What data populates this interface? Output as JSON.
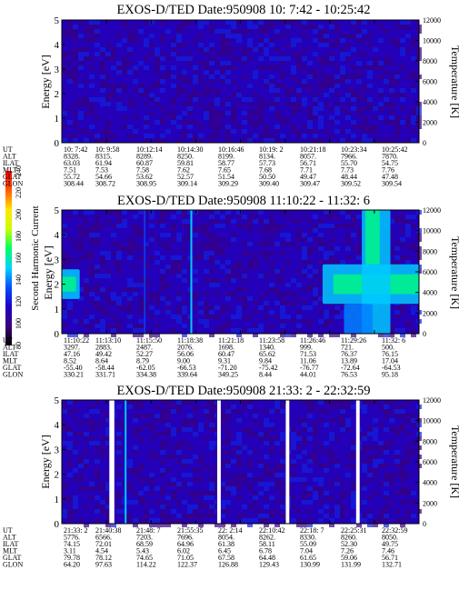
{
  "chart_data": [
    {
      "type": "heatmap",
      "title": "EXOS-D/TED   Date:950908  10: 7:42 - 10:25:42",
      "ylabel": "Energy [eV]",
      "y2label": "Temperature [K]",
      "ylim": [
        0,
        5
      ],
      "y2lim": [
        0,
        12000
      ],
      "yticks": [
        "0",
        "1",
        "2",
        "3",
        "4",
        "5"
      ],
      "y2ticks": [
        "0",
        "2000",
        "4000",
        "6000",
        "8000",
        "10000",
        "12000"
      ],
      "row_labels": [
        "UT",
        "ALT",
        "ILAT",
        "MLT",
        "GLAT",
        "GLON"
      ],
      "columns": [
        [
          "10: 7:42",
          "8328.",
          "63.03",
          "7.51",
          "55.72",
          "308.44"
        ],
        [
          "10: 9:58",
          "8315.",
          "61.94",
          "7.53",
          "54.66",
          "308.72"
        ],
        [
          "10:12:14",
          "8289.",
          "60.87",
          "7.58",
          "53.62",
          "308.95"
        ],
        [
          "10:14:30",
          "8250.",
          "59.81",
          "7.62",
          "52.57",
          "309.14"
        ],
        [
          "10:16:46",
          "8199.",
          "58.77",
          "7.65",
          "51.54",
          "309.29"
        ],
        [
          "10:19: 2",
          "8134.",
          "57.73",
          "7.68",
          "50.50",
          "309.40"
        ],
        [
          "10:21:18",
          "8057.",
          "56.71",
          "7.71",
          "49.47",
          "309.47"
        ],
        [
          "10:23:34",
          "7966.",
          "55.70",
          "7.73",
          "48.44",
          "309.52"
        ],
        [
          "10:25:42",
          "7870.",
          "54.75",
          "7.76",
          "47.48",
          "309.54"
        ]
      ],
      "features": [],
      "gaps": []
    },
    {
      "type": "heatmap",
      "title": "EXOS-D/TED   Date:950908  11:10:22 - 11:32: 6",
      "ylabel": "Energy [eV]",
      "y2label": "Temperature [K]",
      "ylim": [
        0,
        5
      ],
      "y2lim": [
        0,
        12000
      ],
      "yticks": [
        "0",
        "1",
        "2",
        "3",
        "4",
        "5"
      ],
      "y2ticks": [
        "0",
        "2000",
        "4000",
        "6000",
        "8000",
        "10000",
        "12000"
      ],
      "row_labels": [
        "UT",
        "ALT",
        "ILAT",
        "MLT",
        "GLAT",
        "GLON"
      ],
      "columns": [
        [
          "11:10:22",
          "3297.",
          "47.16",
          "8.52",
          "-55.40",
          "330.21"
        ],
        [
          "11:13:10",
          "2883.",
          "49.42",
          "8.64",
          "-58.44",
          "331.71"
        ],
        [
          "11:15:50",
          "2487.",
          "52.27",
          "8.79",
          "-62.05",
          "334.38"
        ],
        [
          "11:18:38",
          "2076.",
          "56.06",
          "9.00",
          "-66.53",
          "339.64"
        ],
        [
          "11:21:18",
          "1698.",
          "60.47",
          "9.31",
          "-71.20",
          "349.25"
        ],
        [
          "11:23:58",
          "1340.",
          "65.62",
          "9.84",
          "-75.42",
          "8.44"
        ],
        [
          "11:26:46",
          "999.",
          "71.53",
          "11.06",
          "-76.77",
          "44.01"
        ],
        [
          "11:29:26",
          "721.",
          "76.37",
          "13.89",
          "-72.64",
          "76.53"
        ],
        [
          "11:32: 6",
          "500.",
          "76.15",
          "17.04",
          "-64.53",
          "95.18"
        ]
      ],
      "features": [
        {
          "shape": "band",
          "t0": 0.0,
          "t1": 0.05,
          "e0": 1.4,
          "e1": 2.6,
          "value": 150
        },
        {
          "shape": "band",
          "t0": 0.0,
          "t1": 0.04,
          "e0": 1.7,
          "e1": 2.3,
          "value": 165
        },
        {
          "shape": "line",
          "t0": 0.36,
          "t1": 0.365,
          "e0": 0.0,
          "e1": 5.0,
          "value": 150
        },
        {
          "shape": "line",
          "t0": 0.23,
          "t1": 0.234,
          "e0": 0.0,
          "e1": 5.0,
          "value": 130
        },
        {
          "shape": "band",
          "t0": 0.73,
          "t1": 1.0,
          "e0": 1.2,
          "e1": 2.8,
          "value": 150
        },
        {
          "shape": "band",
          "t0": 0.76,
          "t1": 1.0,
          "e0": 1.6,
          "e1": 2.4,
          "value": 165
        },
        {
          "shape": "band",
          "t0": 0.84,
          "t1": 0.92,
          "e0": 0.0,
          "e1": 5.0,
          "value": 150
        },
        {
          "shape": "band",
          "t0": 0.85,
          "t1": 0.89,
          "e0": 2.8,
          "e1": 5.0,
          "value": 165
        },
        {
          "shape": "band",
          "t0": 0.79,
          "t1": 0.87,
          "e0": 0.0,
          "e1": 1.2,
          "value": 140
        }
      ],
      "gaps": []
    },
    {
      "type": "heatmap",
      "title": "EXOS-D/TED   Date:950908  21:33: 2 - 22:32:59",
      "ylabel": "Energy [eV]",
      "y2label": "Temperature [K]",
      "ylim": [
        0,
        5
      ],
      "y2lim": [
        0,
        12000
      ],
      "yticks": [
        "0",
        "1",
        "2",
        "3",
        "4",
        "5"
      ],
      "y2ticks": [
        "0",
        "2000",
        "4000",
        "6000",
        "8000",
        "10000",
        "12000"
      ],
      "row_labels": [
        "UT",
        "ALT",
        "ILAT",
        "MLT",
        "GLAT",
        "GLON"
      ],
      "columns": [
        [
          "21:33: 2",
          "5776.",
          "74.15",
          "3.11",
          "79.78",
          "64.20"
        ],
        [
          "21:40:38",
          "6566.",
          "72.01",
          "4.54",
          "78.12",
          "97.63"
        ],
        [
          "21:48: 7",
          "7203.",
          "68.59",
          "5.43",
          "74.65",
          "114.22"
        ],
        [
          "21:55:35",
          "7696.",
          "64.96",
          "6.02",
          "71.05",
          "122.37"
        ],
        [
          "22: 2:14",
          "8054.",
          "61.38",
          "6.45",
          "67.58",
          "126.88"
        ],
        [
          "22:10:42",
          "8262.",
          "58.11",
          "6.78",
          "64.48",
          "129.43"
        ],
        [
          "22:18: 7",
          "8330.",
          "55.09",
          "7.04",
          "61.65",
          "130.99"
        ],
        [
          "22:25:31",
          "8260.",
          "52.30",
          "7.26",
          "59.06",
          "131.99"
        ],
        [
          "22:32:59",
          "8050.",
          "49.75",
          "7.46",
          "56.71",
          "132.71"
        ]
      ],
      "features": [
        {
          "shape": "line",
          "t0": 0.176,
          "t1": 0.181,
          "e0": 0.0,
          "e1": 5.0,
          "value": 150
        }
      ],
      "gaps": [
        [
          0.133,
          0.147
        ],
        [
          0.435,
          0.445
        ],
        [
          0.627,
          0.637
        ],
        [
          0.824,
          0.834
        ]
      ]
    }
  ],
  "colorbar": {
    "label": "Second Harmonic Current",
    "ticks": [
      "80",
      "100",
      "120",
      "140",
      "160",
      "180",
      "200",
      "220",
      "240"
    ],
    "min": 80,
    "max": 240,
    "colors": [
      "#000000",
      "#3c0078",
      "#1e00c8",
      "#0050ff",
      "#00d2ff",
      "#00ff64",
      "#c8ff00",
      "#ffe600",
      "#ff5a00",
      "#ff0000"
    ]
  },
  "background_value": 112
}
